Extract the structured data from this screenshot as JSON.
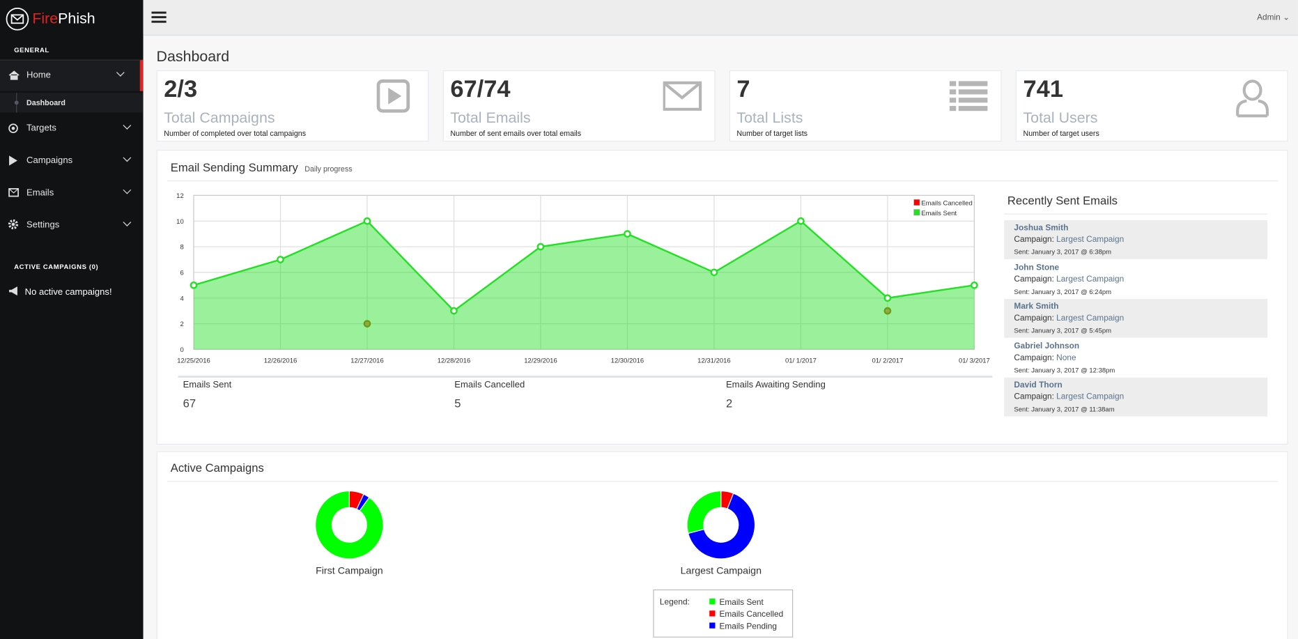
{
  "app": {
    "brand_a": "Fire",
    "brand_b": "Phish",
    "user": "Admin"
  },
  "sidebar": {
    "section": "GENERAL",
    "items": [
      {
        "label": "Home"
      },
      {
        "label": "Dashboard"
      },
      {
        "label": "Targets"
      },
      {
        "label": "Campaigns"
      },
      {
        "label": "Emails"
      },
      {
        "label": "Settings"
      }
    ],
    "active_heading": "ACTIVE CAMPAIGNS (0)",
    "active_empty": "No active campaigns!"
  },
  "page_title": "Dashboard",
  "cards": [
    {
      "value": "2/3",
      "label": "Total Campaigns",
      "description": "Number of completed over total campaigns"
    },
    {
      "value": "67/74",
      "label": "Total Emails",
      "description": "Number of sent emails over total emails"
    },
    {
      "value": 7,
      "label": "Total Lists",
      "description": "Number of target lists"
    },
    {
      "value": 741,
      "label": "Total Users",
      "description": "Number of target users"
    }
  ],
  "summary": [
    {
      "label": "Emails Sent",
      "value": 67
    },
    {
      "label": "Emails Cancelled",
      "value": 5
    },
    {
      "label": "Emails Awaiting Sending",
      "value": 2
    }
  ],
  "recent": {
    "title": "Recently Sent Emails",
    "items": [
      {
        "name": "Joshua Smith",
        "prefix": "Campaign:",
        "campaign": "Largest Campaign",
        "sent": "Sent: January 3, 2017 @ 6:38pm"
      },
      {
        "name": "John Stone",
        "prefix": "Campaign:",
        "campaign": "Largest Campaign",
        "sent": "Sent: January 3, 2017 @ 6:24pm"
      },
      {
        "name": "Mark Smith",
        "prefix": "Campaign:",
        "campaign": "Largest Campaign",
        "sent": "Sent: January 3, 2017 @ 5:45pm"
      },
      {
        "name": "Gabriel Johnson",
        "prefix": "Campaign:",
        "campaign": "None",
        "sent": "Sent: January 3, 2017 @ 12:38pm"
      },
      {
        "name": "David Thorn",
        "prefix": "Campaign:",
        "campaign": "Largest Campaign",
        "sent": "Sent: January 3, 2017 @ 11:38am"
      }
    ]
  },
  "active_campaigns": {
    "title": "Active Campaigns",
    "legend_title": "Legend:"
  },
  "chart_data": [
    {
      "type": "line",
      "title": "Email Sending Summary",
      "subtitle": "Daily progress",
      "categories": [
        "12/25/2016",
        "12/26/2016",
        "12/27/2016",
        "12/28/2016",
        "12/29/2016",
        "12/30/2016",
        "12/31/2016",
        "01/ 1/2017",
        "01/ 2/2017",
        "01/ 3/2017"
      ],
      "series": [
        {
          "name": "Emails Cancelled",
          "color": "#ff0000",
          "values": [
            null,
            null,
            2,
            null,
            null,
            null,
            null,
            null,
            3,
            null
          ]
        },
        {
          "name": "Emails Sent",
          "color": "#22e022",
          "values": [
            5,
            7,
            10,
            3,
            8,
            9,
            6,
            10,
            4,
            5
          ]
        }
      ],
      "ylim": [
        0,
        12
      ],
      "yticks": [
        0,
        2,
        4,
        6,
        8,
        10,
        12
      ],
      "grid": true,
      "legend": "top-right"
    },
    {
      "type": "pie",
      "title": "First Campaign",
      "donut": true,
      "categories": [
        "Emails Cancelled",
        "Emails Pending",
        "Emails Sent"
      ],
      "colors": [
        "#ff0000",
        "#0000ff",
        "#00ff00"
      ],
      "values": [
        7,
        3,
        90
      ]
    },
    {
      "type": "pie",
      "title": "Largest Campaign",
      "donut": true,
      "categories": [
        "Emails Cancelled",
        "Emails Pending",
        "Emails Sent"
      ],
      "colors": [
        "#ff0000",
        "#0000ff",
        "#00ff00"
      ],
      "values": [
        6,
        65,
        29
      ]
    }
  ]
}
